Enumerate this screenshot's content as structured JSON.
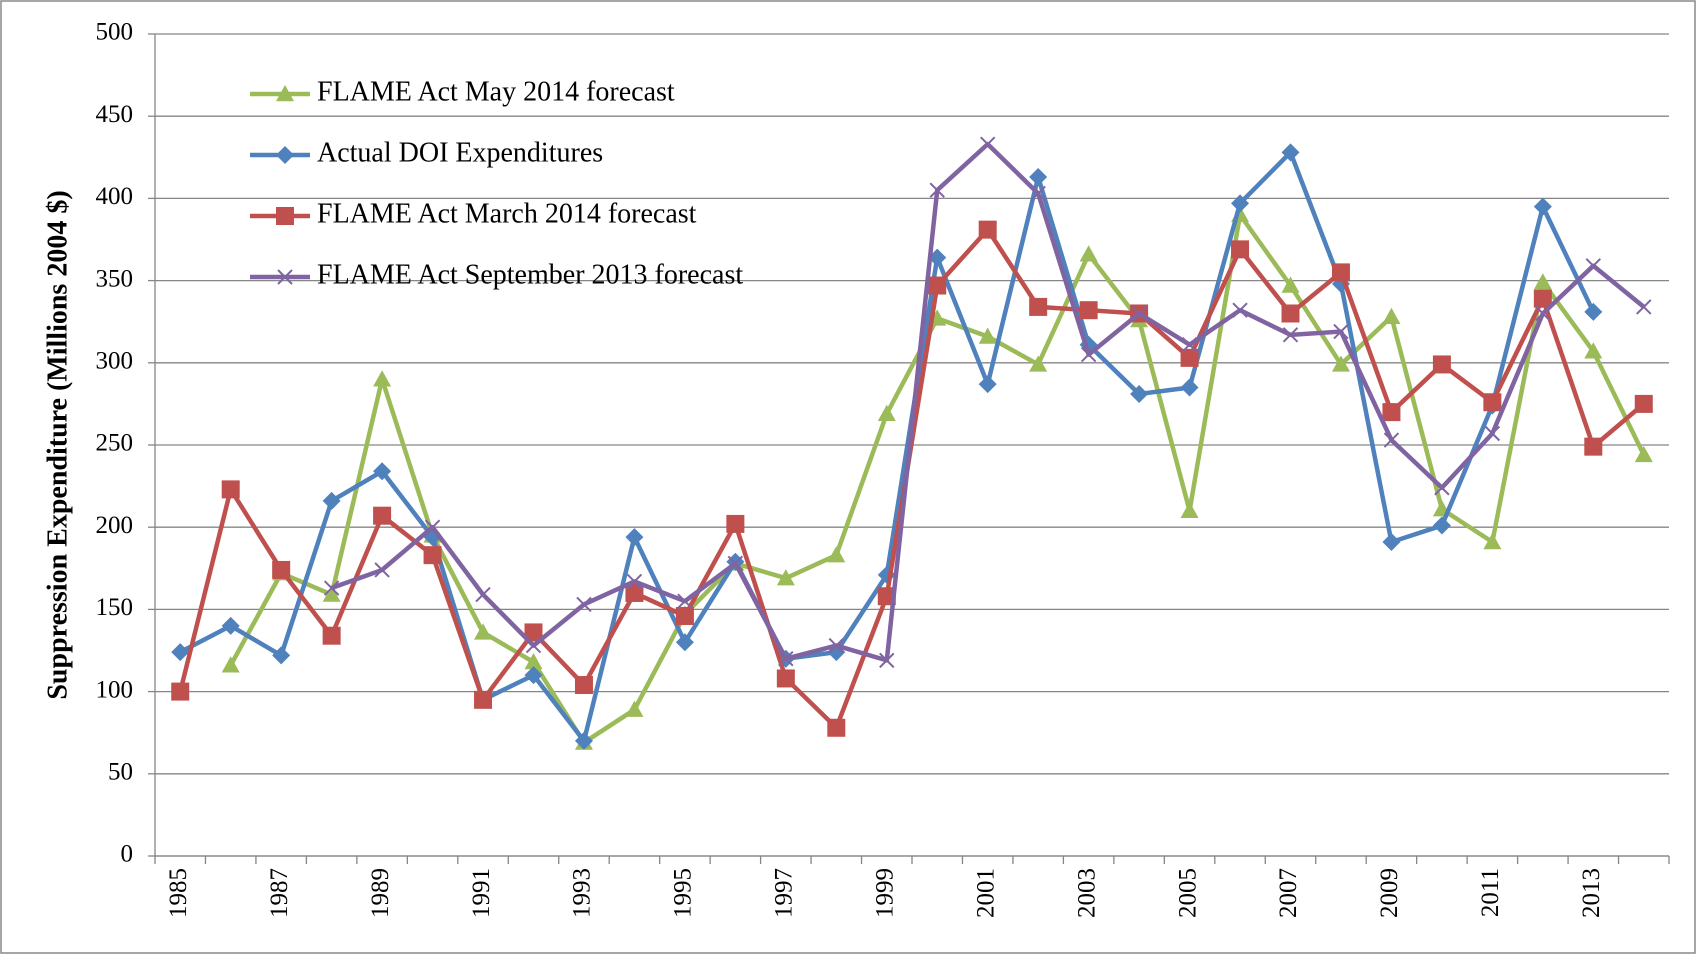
{
  "chart_data": {
    "type": "line",
    "y_label": "Suppression Expenditure (Millions 2004 $)",
    "categories": [
      "1985",
      null,
      "1987",
      null,
      "1989",
      null,
      "1991",
      null,
      "1993",
      null,
      "1995",
      null,
      "1997",
      null,
      "1999",
      null,
      "2001",
      null,
      "2003",
      null,
      "2005",
      null,
      "2007",
      null,
      "2009",
      null,
      "2011",
      null,
      "2013",
      null
    ],
    "ylim": [
      0,
      500
    ],
    "yticks": [
      0,
      50,
      100,
      150,
      200,
      250,
      300,
      350,
      400,
      450,
      500
    ],
    "grid": true,
    "legend": "upper-left",
    "series": [
      {
        "name": "FLAME Act May 2014 forecast",
        "color": "#9bbb59",
        "marker": "triangle",
        "values": [
          null,
          116,
          172,
          159,
          290,
          195,
          136,
          118,
          69,
          89,
          147,
          178,
          169,
          183,
          269,
          327,
          316,
          299,
          366,
          326,
          210,
          390,
          347,
          299,
          328,
          211,
          191,
          349,
          307,
          244
        ]
      },
      {
        "name": "Actual DOI Expenditures",
        "color": "#4f81bd",
        "marker": "diamond",
        "values": [
          124,
          140,
          122,
          216,
          234,
          194,
          95,
          110,
          70,
          194,
          130,
          179,
          120,
          124,
          171,
          364,
          287,
          413,
          311,
          281,
          285,
          397,
          428,
          348,
          191,
          201,
          274,
          395,
          331,
          null
        ]
      },
      {
        "name": "FLAME Act March 2014 forecast",
        "color": "#c0504d",
        "marker": "square",
        "values": [
          100,
          223,
          174,
          134,
          207,
          183,
          95,
          136,
          104,
          160,
          146,
          202,
          108,
          78,
          158,
          347,
          381,
          334,
          332,
          330,
          303,
          369,
          330,
          355,
          270,
          299,
          276,
          339,
          249,
          275
        ]
      },
      {
        "name": "FLAME Act September 2013 forecast",
        "color": "#8064a2",
        "marker": "x",
        "values": [
          null,
          null,
          null,
          163,
          174,
          200,
          159,
          128,
          153,
          167,
          155,
          178,
          120,
          128,
          119,
          405,
          433,
          403,
          305,
          330,
          311,
          332,
          317,
          319,
          253,
          224,
          257,
          330,
          359,
          334
        ]
      }
    ]
  }
}
